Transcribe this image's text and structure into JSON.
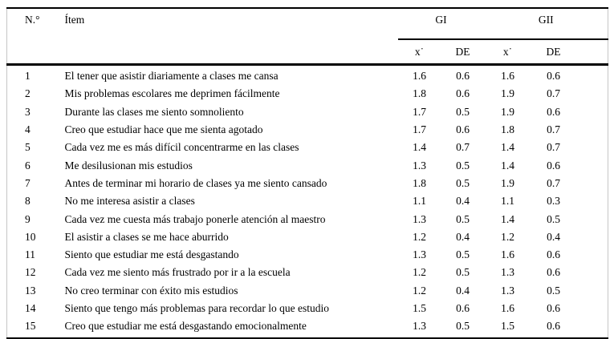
{
  "table": {
    "headers": {
      "number": "N.°",
      "item": "Ítem",
      "group1": "GI",
      "group2": "GII",
      "mean": "x˙",
      "sd": "DE"
    },
    "rows": [
      {
        "n": "1",
        "item": "El tener que asistir diariamente a clases me cansa",
        "gi_mean": "1.6",
        "gi_sd": "0.6",
        "gii_mean": "1.6",
        "gii_sd": "0.6"
      },
      {
        "n": "2",
        "item": "Mis problemas escolares me deprimen fácilmente",
        "gi_mean": "1.8",
        "gi_sd": "0.6",
        "gii_mean": "1.9",
        "gii_sd": "0.7"
      },
      {
        "n": "3",
        "item": "Durante las clases me siento somnoliento",
        "gi_mean": "1.7",
        "gi_sd": "0.5",
        "gii_mean": "1.9",
        "gii_sd": "0.6"
      },
      {
        "n": "4",
        "item": "Creo que estudiar hace que me sienta agotado",
        "gi_mean": "1.7",
        "gi_sd": "0.6",
        "gii_mean": "1.8",
        "gii_sd": "0.7"
      },
      {
        "n": "5",
        "item": "Cada vez me es más difícil concentrarme en las clases",
        "gi_mean": "1.4",
        "gi_sd": "0.7",
        "gii_mean": "1.4",
        "gii_sd": "0.7"
      },
      {
        "n": "6",
        "item": "Me desilusionan mis estudios",
        "gi_mean": "1.3",
        "gi_sd": "0.5",
        "gii_mean": "1.4",
        "gii_sd": "0.6"
      },
      {
        "n": "7",
        "item": "Antes de terminar mi horario de clases ya me siento cansado",
        "gi_mean": "1.8",
        "gi_sd": "0.5",
        "gii_mean": "1.9",
        "gii_sd": "0.7"
      },
      {
        "n": "8",
        "item": "No me interesa asistir a clases",
        "gi_mean": "1.1",
        "gi_sd": "0.4",
        "gii_mean": "1.1",
        "gii_sd": "0.3"
      },
      {
        "n": "9",
        "item": "Cada vez me cuesta más trabajo ponerle atención al maestro",
        "gi_mean": "1.3",
        "gi_sd": "0.5",
        "gii_mean": "1.4",
        "gii_sd": "0.5"
      },
      {
        "n": "10",
        "item": "El asistir a clases se me hace aburrido",
        "gi_mean": "1.2",
        "gi_sd": "0.4",
        "gii_mean": "1.2",
        "gii_sd": "0.4"
      },
      {
        "n": "11",
        "item": "Siento que estudiar me está desgastando",
        "gi_mean": "1.3",
        "gi_sd": "0.5",
        "gii_mean": "1.6",
        "gii_sd": "0.6"
      },
      {
        "n": "12",
        "item": "Cada vez me siento más frustrado por ir a la escuela",
        "gi_mean": "1.2",
        "gi_sd": "0.5",
        "gii_mean": "1.3",
        "gii_sd": "0.6"
      },
      {
        "n": "13",
        "item": "No creo terminar con éxito mis estudios",
        "gi_mean": "1.2",
        "gi_sd": "0.4",
        "gii_mean": "1.3",
        "gii_sd": "0.5"
      },
      {
        "n": "14",
        "item": "Siento que tengo más problemas para recordar lo que estudio",
        "gi_mean": "1.5",
        "gi_sd": "0.6",
        "gii_mean": "1.6",
        "gii_sd": "0.6"
      },
      {
        "n": "15",
        "item": "Creo que estudiar me está desgastando emocionalmente",
        "gi_mean": "1.3",
        "gi_sd": "0.5",
        "gii_mean": "1.5",
        "gii_sd": "0.6"
      }
    ]
  },
  "colors": {
    "rule": "#000000",
    "side_border": "#c6c6c6",
    "text": "#000000",
    "background": "#ffffff"
  }
}
